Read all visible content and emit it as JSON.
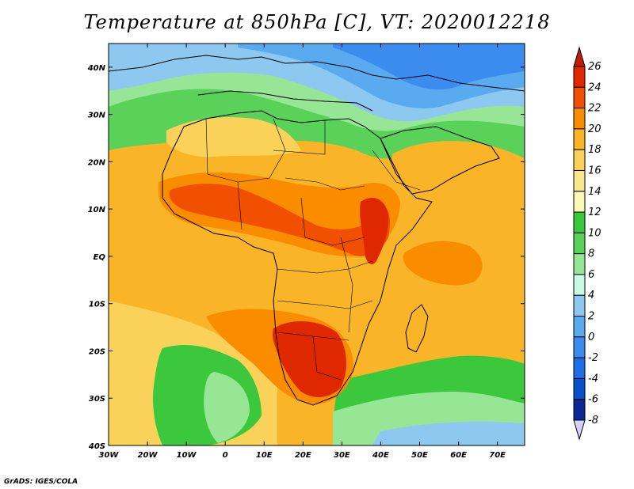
{
  "title": "Temperature at 850hPa [C], VT: 2020012218",
  "credit": "GrADS: IGES/COLA",
  "map": {
    "lon_range": [
      -30,
      77
    ],
    "lat_range": [
      -40,
      45
    ],
    "lon_ticks": [
      "30W",
      "20W",
      "10W",
      "0",
      "10E",
      "20E",
      "30E",
      "40E",
      "50E",
      "60E",
      "70E"
    ],
    "lat_ticks": [
      "40N",
      "30N",
      "20N",
      "10N",
      "EQ",
      "10S",
      "20S",
      "30S",
      "40S"
    ]
  },
  "colorbar": {
    "labels": [
      "26",
      "24",
      "22",
      "20",
      "18",
      "16",
      "14",
      "12",
      "10",
      "8",
      "6",
      "4",
      "2",
      "0",
      "-2",
      "-4",
      "-6",
      "-8"
    ],
    "colors": [
      "#e02800",
      "#f05000",
      "#fa8c00",
      "#fab428",
      "#fad25a",
      "#fae68c",
      "#fafab4",
      "#3cc83c",
      "#5ad25a",
      "#96e696",
      "#c8fae6",
      "#8cc8f0",
      "#5aaaf0",
      "#3c8cf0",
      "#1e6ee6",
      "#0a50c8",
      "#0a2896"
    ],
    "top_arrow_color": "#c01e00",
    "bottom_arrow_color": "#d2d2fa"
  }
}
